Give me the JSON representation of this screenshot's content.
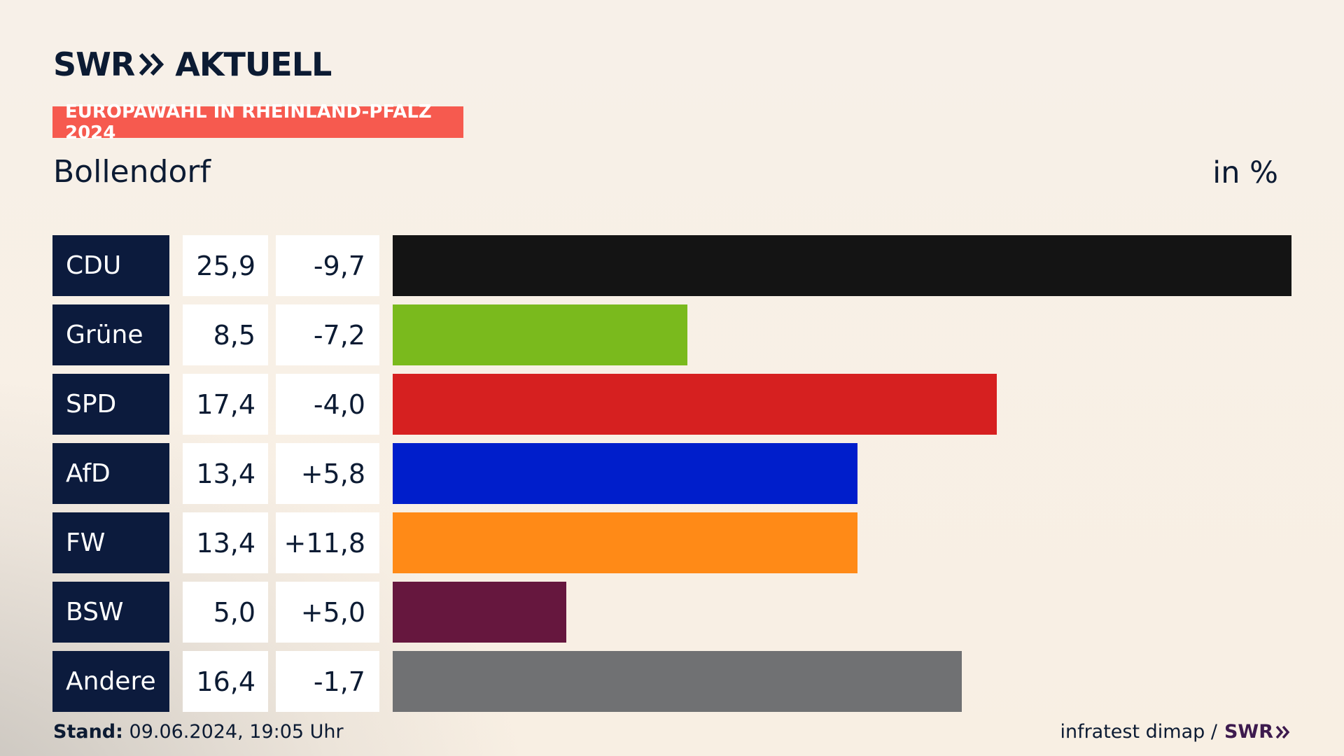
{
  "brand": {
    "logo_left": "SWR",
    "logo_right": "AKTUELL"
  },
  "header": {
    "tag": "EUROPAWAHL IN RHEINLAND-PFALZ 2024",
    "place": "Bollendorf",
    "unit": "in %"
  },
  "colors": {
    "tag_background": "#f65a4f",
    "party_cell": "#0c1b3d",
    "text": "#0c1b33"
  },
  "chart_data": {
    "type": "bar",
    "orientation": "horizontal",
    "categories": [
      "CDU",
      "Grüne",
      "SPD",
      "AfD",
      "FW",
      "BSW",
      "Andere"
    ],
    "values": [
      25.9,
      8.5,
      17.4,
      13.4,
      13.4,
      5.0,
      16.4
    ],
    "value_labels": [
      "25,9",
      "8,5",
      "17,4",
      "13,4",
      "13,4",
      "5,0",
      "16,4"
    ],
    "diff_labels": [
      "-9,7",
      "-7,2",
      "-4,0",
      "+5,8",
      "+11,8",
      "+5,0",
      "-1,7"
    ],
    "diffs": [
      -9.7,
      -7.2,
      -4.0,
      5.8,
      11.8,
      5.0,
      -1.7
    ],
    "colors": [
      "#141414",
      "#7aba1d",
      "#d62020",
      "#001ecb",
      "#ff8a17",
      "#66173e",
      "#707173"
    ],
    "xlim": [
      0,
      25.9
    ],
    "grid": false,
    "legend": "none"
  },
  "footer": {
    "stand_label": "Stand:",
    "stand_value": "09.06.2024, 19:05 Uhr",
    "source": "infratest dimap /",
    "source_brand": "SWR"
  }
}
